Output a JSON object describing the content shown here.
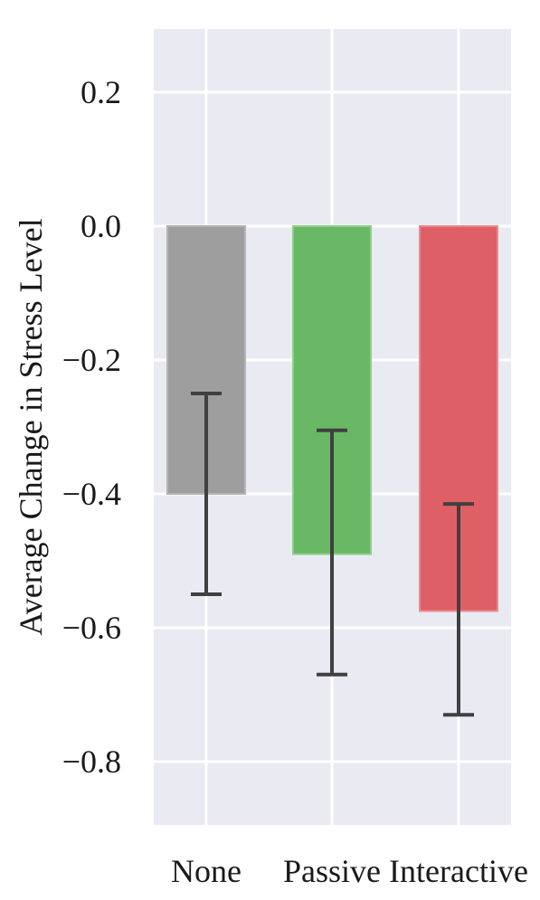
{
  "chart_data": {
    "type": "bar",
    "title": "",
    "xlabel": "",
    "ylabel": "Average Change in Stress Level",
    "categories": [
      "None",
      "Passive",
      "Interactive"
    ],
    "values": [
      -0.4,
      -0.49,
      -0.575
    ],
    "error_low": [
      -0.55,
      -0.67,
      -0.73
    ],
    "error_high": [
      -0.25,
      -0.305,
      -0.415
    ],
    "colors": [
      "#9e9e9e",
      "#69b865",
      "#de5f65"
    ],
    "edge_colors": [
      "#b5b5b5",
      "#8fcf8a",
      "#eb8a8f"
    ],
    "ylim": [
      -0.9,
      0.3
    ],
    "yticks": [
      0.2,
      0.0,
      -0.2,
      -0.4,
      -0.6,
      -0.8
    ],
    "ytick_labels": [
      "0.2",
      "0.0",
      "−0.2",
      "−0.4",
      "−0.6",
      "−0.8"
    ],
    "grid": true,
    "background": "#eaeaf2"
  }
}
